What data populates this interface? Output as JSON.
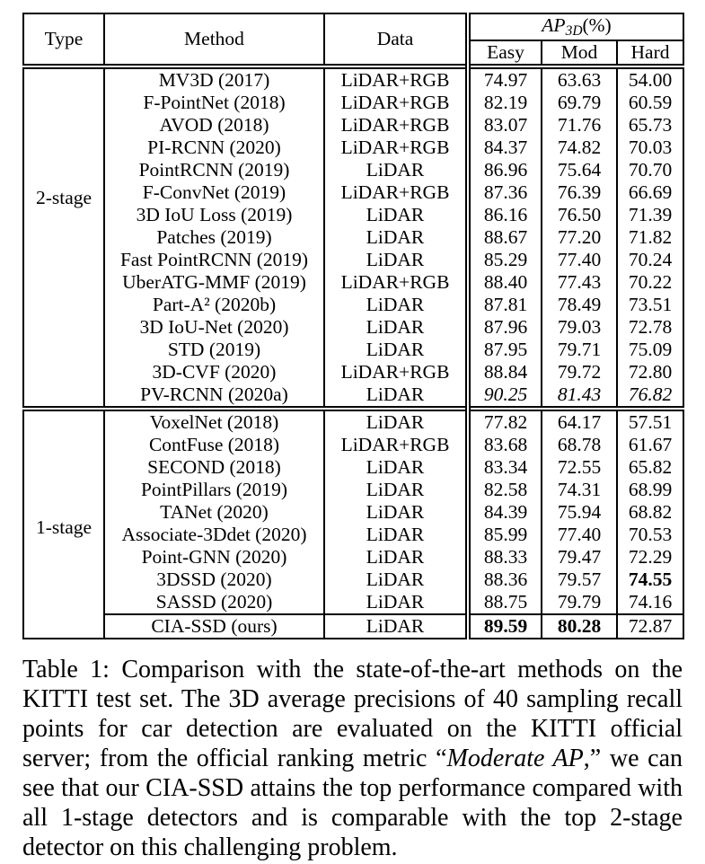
{
  "colors": {
    "background": "#ffffff",
    "text": "#000000",
    "border": "#000000"
  },
  "table": {
    "header": {
      "type": "Type",
      "method": "Method",
      "data": "Data",
      "ap_group": {
        "italic": "AP",
        "sub": "3D",
        "suffix": "(%)"
      },
      "subcols": [
        "Easy",
        "Mod",
        "Hard"
      ]
    },
    "sections": [
      {
        "type_label": "2-stage",
        "rows": [
          {
            "method": "MV3D (2017)",
            "data": "LiDAR+RGB",
            "ap": [
              "74.97",
              "63.63",
              "54.00"
            ],
            "ap_styles": [
              "",
              "",
              ""
            ]
          },
          {
            "method": "F-PointNet (2018)",
            "data": "LiDAR+RGB",
            "ap": [
              "82.19",
              "69.79",
              "60.59"
            ],
            "ap_styles": [
              "",
              "",
              ""
            ]
          },
          {
            "method": "AVOD (2018)",
            "data": "LiDAR+RGB",
            "ap": [
              "83.07",
              "71.76",
              "65.73"
            ],
            "ap_styles": [
              "",
              "",
              ""
            ]
          },
          {
            "method": "PI-RCNN (2020)",
            "data": "LiDAR+RGB",
            "ap": [
              "84.37",
              "74.82",
              "70.03"
            ],
            "ap_styles": [
              "",
              "",
              ""
            ]
          },
          {
            "method": "PointRCNN (2019)",
            "data": "LiDAR",
            "ap": [
              "86.96",
              "75.64",
              "70.70"
            ],
            "ap_styles": [
              "",
              "",
              ""
            ]
          },
          {
            "method": "F-ConvNet (2019)",
            "data": "LiDAR+RGB",
            "ap": [
              "87.36",
              "76.39",
              "66.69"
            ],
            "ap_styles": [
              "",
              "",
              ""
            ]
          },
          {
            "method": "3D IoU Loss (2019)",
            "data": "LiDAR",
            "ap": [
              "86.16",
              "76.50",
              "71.39"
            ],
            "ap_styles": [
              "",
              "",
              ""
            ]
          },
          {
            "method": "Patches (2019)",
            "data": "LiDAR",
            "ap": [
              "88.67",
              "77.20",
              "71.82"
            ],
            "ap_styles": [
              "",
              "",
              ""
            ]
          },
          {
            "method": "Fast PointRCNN (2019)",
            "data": "LiDAR",
            "ap": [
              "85.29",
              "77.40",
              "70.24"
            ],
            "ap_styles": [
              "",
              "",
              ""
            ]
          },
          {
            "method": "UberATG-MMF (2019)",
            "data": "LiDAR+RGB",
            "ap": [
              "88.40",
              "77.43",
              "70.22"
            ],
            "ap_styles": [
              "",
              "",
              ""
            ]
          },
          {
            "method": "Part-A² (2020b)",
            "data": "LiDAR",
            "ap": [
              "87.81",
              "78.49",
              "73.51"
            ],
            "ap_styles": [
              "",
              "",
              ""
            ]
          },
          {
            "method": "3D IoU-Net (2020)",
            "data": "LiDAR",
            "ap": [
              "87.96",
              "79.03",
              "72.78"
            ],
            "ap_styles": [
              "",
              "",
              ""
            ]
          },
          {
            "method": "STD (2019)",
            "data": "LiDAR",
            "ap": [
              "87.95",
              "79.71",
              "75.09"
            ],
            "ap_styles": [
              "",
              "",
              ""
            ]
          },
          {
            "method": "3D-CVF (2020)",
            "data": "LiDAR+RGB",
            "ap": [
              "88.84",
              "79.72",
              "72.80"
            ],
            "ap_styles": [
              "",
              "",
              ""
            ]
          },
          {
            "method": "PV-RCNN (2020a)",
            "data": "LiDAR",
            "ap": [
              "90.25",
              "81.43",
              "76.82"
            ],
            "ap_styles": [
              "italic",
              "italic",
              "italic"
            ]
          }
        ]
      },
      {
        "type_label": "1-stage",
        "rows": [
          {
            "method": "VoxelNet (2018)",
            "data": "LiDAR",
            "ap": [
              "77.82",
              "64.17",
              "57.51"
            ],
            "ap_styles": [
              "",
              "",
              ""
            ]
          },
          {
            "method": "ContFuse (2018)",
            "data": "LiDAR+RGB",
            "ap": [
              "83.68",
              "68.78",
              "61.67"
            ],
            "ap_styles": [
              "",
              "",
              ""
            ]
          },
          {
            "method": "SECOND (2018)",
            "data": "LiDAR",
            "ap": [
              "83.34",
              "72.55",
              "65.82"
            ],
            "ap_styles": [
              "",
              "",
              ""
            ]
          },
          {
            "method": "PointPillars (2019)",
            "data": "LiDAR",
            "ap": [
              "82.58",
              "74.31",
              "68.99"
            ],
            "ap_styles": [
              "",
              "",
              ""
            ]
          },
          {
            "method": "TANet (2020)",
            "data": "LiDAR",
            "ap": [
              "84.39",
              "75.94",
              "68.82"
            ],
            "ap_styles": [
              "",
              "",
              ""
            ]
          },
          {
            "method": "Associate-3Ddet (2020)",
            "data": "LiDAR",
            "ap": [
              "85.99",
              "77.40",
              "70.53"
            ],
            "ap_styles": [
              "",
              "",
              ""
            ]
          },
          {
            "method": "Point-GNN (2020)",
            "data": "LiDAR",
            "ap": [
              "88.33",
              "79.47",
              "72.29"
            ],
            "ap_styles": [
              "",
              "",
              ""
            ]
          },
          {
            "method": "3DSSD (2020)",
            "data": "LiDAR",
            "ap": [
              "88.36",
              "79.57",
              "74.55"
            ],
            "ap_styles": [
              "",
              "",
              "bold"
            ]
          },
          {
            "method": "SASSD (2020)",
            "data": "LiDAR",
            "ap": [
              "88.75",
              "79.79",
              "74.16"
            ],
            "ap_styles": [
              "",
              "",
              ""
            ]
          },
          {
            "method": "CIA-SSD (ours)",
            "data": "LiDAR",
            "ap": [
              "89.59",
              "80.28",
              "72.87"
            ],
            "ap_styles": [
              "bold",
              "bold",
              ""
            ],
            "rule_above": true
          }
        ]
      }
    ]
  },
  "caption": {
    "part1": "Table 1: Comparison with the state-of-the-art methods on the KITTI test set. The 3D average precisions of 40 sampling recall points for car detection are evaluated on the KITTI official server; from the official ranking metric “",
    "italic": "Moderate AP",
    "part2": ",” we can see that our CIA-SSD attains the top performance compared with all 1-stage detectors and is comparable with the top 2-stage detector on this challenging problem."
  }
}
